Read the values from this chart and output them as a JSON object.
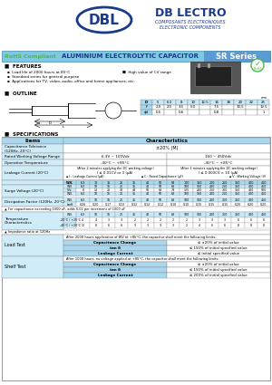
{
  "bg_color": "#ffffff",
  "blue_light": "#c8e8f8",
  "blue_mid": "#a0d0ec",
  "blue_dark": "#5b9bd5",
  "title_bar_bg": "#7ec8e3",
  "rohs_green": "#4db848",
  "company_blue": "#1a3a8c",
  "cell_blue": "#d0ecf8",
  "cell_header": "#a8d8f0",
  "border": "#888888",
  "surge_wv": [
    "W.V.",
    "6.3",
    "10",
    "16",
    "25",
    "35",
    "40",
    "50",
    "63",
    "100",
    "160",
    "200",
    "250",
    "350",
    "400",
    "450"
  ],
  "surge_sv": [
    "S.V.",
    "8",
    "13",
    "20",
    "32",
    "44",
    "50",
    "63",
    "79",
    "125",
    "200",
    "250",
    "300",
    "350",
    "400",
    "500"
  ],
  "df_tan": [
    "tanδ",
    "0.26",
    "0.20",
    "0.17",
    "0.13",
    "0.12",
    "0.12",
    "0.12",
    "0.10",
    "0.10",
    "0.15",
    "0.15",
    "0.15",
    "0.20",
    "0.20",
    "0.20"
  ],
  "tc_row1": [
    "-20°C / +20°C",
    "4",
    "4",
    "3",
    "3",
    "2",
    "2",
    "2",
    "2",
    "2",
    "3",
    "3",
    "3",
    "6",
    "6",
    "6"
  ],
  "tc_row2": [
    "-40°C / +20°C",
    "12",
    "8",
    "6",
    "6",
    "3",
    "3",
    "3",
    "3",
    "2",
    "4",
    "6",
    "6",
    "8",
    "8",
    "8"
  ],
  "outline_headers": [
    "D",
    "5",
    "6.3",
    "8",
    "10",
    "12.5",
    "16",
    "18",
    "20",
    "22",
    "25"
  ],
  "outline_F": [
    "F",
    "2.0",
    "2.5",
    "3.5",
    "5.0",
    "",
    "7.5",
    "",
    "10.5",
    "",
    "12.5"
  ],
  "outline_d": [
    "ϕd",
    "0.5",
    "",
    "0.6",
    "",
    "",
    "0.8",
    "",
    "",
    "",
    "1"
  ]
}
